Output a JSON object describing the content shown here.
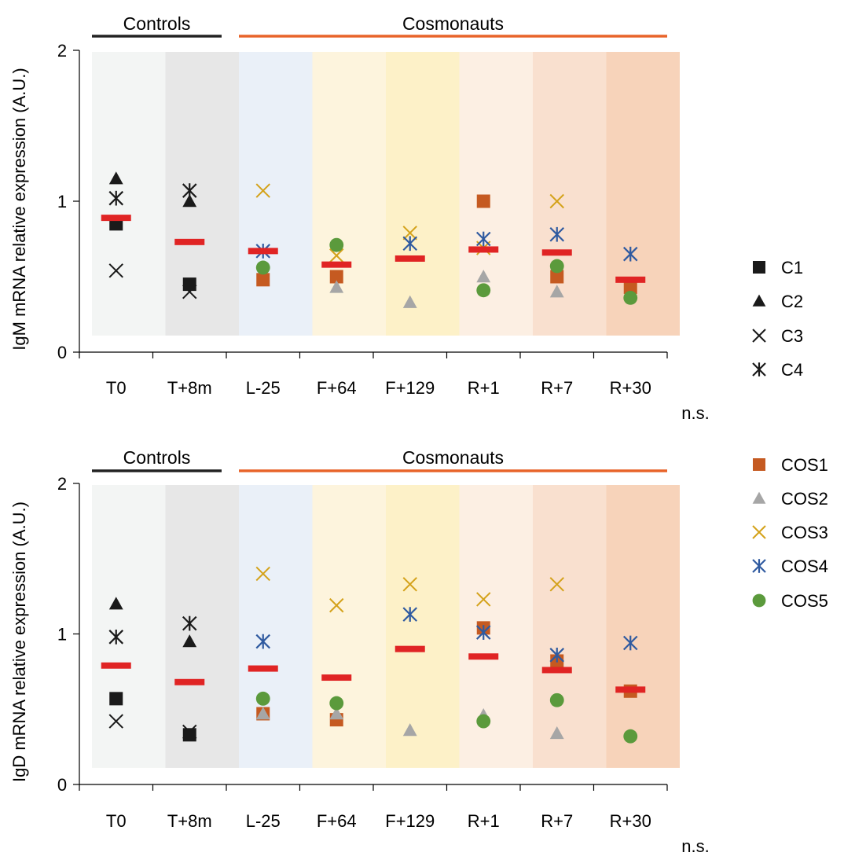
{
  "chart_data": [
    {
      "type": "scatter",
      "ylabel": "IgM mRNA relative expression (A.U.)",
      "ylim": [
        0,
        2
      ],
      "yticks": [
        "0",
        "1",
        "2"
      ],
      "categories": [
        "T0",
        "T+8m",
        "L-25",
        "F+64",
        "F+129",
        "R+1",
        "R+7",
        "R+30"
      ],
      "groups": [
        {
          "label": "Controls",
          "color": "#222222",
          "from": 0,
          "to": 1
        },
        {
          "label": "Cosmonauts",
          "color": "#e8642a",
          "from": 2,
          "to": 7
        }
      ],
      "significance": "n.s.",
      "means": [
        0.89,
        0.73,
        0.67,
        0.58,
        0.62,
        0.68,
        0.66,
        0.48
      ],
      "series": [
        {
          "name": "C1",
          "values": [
            0.85,
            0.45,
            null,
            null,
            null,
            null,
            null,
            null
          ]
        },
        {
          "name": "C2",
          "values": [
            1.15,
            1.0,
            null,
            null,
            null,
            null,
            null,
            null
          ]
        },
        {
          "name": "C3",
          "values": [
            0.54,
            0.4,
            null,
            null,
            null,
            null,
            null,
            null
          ]
        },
        {
          "name": "C4",
          "values": [
            1.02,
            1.07,
            null,
            null,
            null,
            null,
            null,
            null
          ]
        },
        {
          "name": "COS1",
          "values": [
            null,
            null,
            0.48,
            0.5,
            null,
            1.0,
            0.5,
            0.43
          ]
        },
        {
          "name": "COS2",
          "values": [
            null,
            null,
            null,
            0.43,
            0.33,
            0.5,
            0.4,
            null
          ]
        },
        {
          "name": "COS3",
          "values": [
            null,
            null,
            1.07,
            0.64,
            0.79,
            0.69,
            1.0,
            null
          ]
        },
        {
          "name": "COS4",
          "values": [
            null,
            null,
            0.67,
            null,
            0.72,
            0.75,
            0.78,
            0.65
          ]
        },
        {
          "name": "COS5",
          "values": [
            null,
            null,
            0.56,
            0.71,
            null,
            0.41,
            0.57,
            0.36
          ]
        }
      ]
    },
    {
      "type": "scatter",
      "ylabel": "IgD mRNA relative expression (A.U.)",
      "ylim": [
        0,
        2
      ],
      "yticks": [
        "0",
        "1",
        "2"
      ],
      "categories": [
        "T0",
        "T+8m",
        "L-25",
        "F+64",
        "F+129",
        "R+1",
        "R+7",
        "R+30"
      ],
      "groups": [
        {
          "label": "Controls",
          "color": "#222222",
          "from": 0,
          "to": 1
        },
        {
          "label": "Cosmonauts",
          "color": "#e8642a",
          "from": 2,
          "to": 7
        }
      ],
      "significance": "n.s.",
      "means": [
        0.79,
        0.68,
        0.77,
        0.71,
        0.9,
        0.85,
        0.76,
        0.63
      ],
      "series": [
        {
          "name": "C1",
          "values": [
            0.57,
            0.33,
            null,
            null,
            null,
            null,
            null,
            null
          ]
        },
        {
          "name": "C2",
          "values": [
            1.2,
            0.95,
            null,
            null,
            null,
            null,
            null,
            null
          ]
        },
        {
          "name": "C3",
          "values": [
            0.42,
            0.35,
            null,
            null,
            null,
            null,
            null,
            null
          ]
        },
        {
          "name": "C4",
          "values": [
            0.98,
            1.07,
            null,
            null,
            null,
            null,
            null,
            null
          ]
        },
        {
          "name": "COS1",
          "values": [
            null,
            null,
            0.47,
            0.43,
            null,
            1.04,
            0.82,
            0.62
          ]
        },
        {
          "name": "COS2",
          "values": [
            null,
            null,
            0.47,
            0.47,
            0.36,
            0.46,
            0.34,
            null
          ]
        },
        {
          "name": "COS3",
          "values": [
            null,
            null,
            1.4,
            1.19,
            1.33,
            1.23,
            1.33,
            null
          ]
        },
        {
          "name": "COS4",
          "values": [
            null,
            null,
            0.95,
            null,
            1.13,
            1.01,
            0.86,
            0.94
          ]
        },
        {
          "name": "COS5",
          "values": [
            null,
            null,
            0.57,
            0.54,
            null,
            0.42,
            0.56,
            0.32
          ]
        }
      ]
    }
  ],
  "legend": [
    {
      "name": "C1",
      "marker": "square",
      "color": "#1a1a1a"
    },
    {
      "name": "C2",
      "marker": "triangle",
      "color": "#1a1a1a"
    },
    {
      "name": "C3",
      "marker": "x",
      "color": "#1a1a1a"
    },
    {
      "name": "C4",
      "marker": "asterisk",
      "color": "#1a1a1a"
    },
    {
      "name": "COS1",
      "marker": "square",
      "color": "#c55a21"
    },
    {
      "name": "COS2",
      "marker": "triangle",
      "color": "#a6a6a6"
    },
    {
      "name": "COS3",
      "marker": "x",
      "color": "#d4a21a"
    },
    {
      "name": "COS4",
      "marker": "asterisk",
      "color": "#2f5aa0"
    },
    {
      "name": "COS5",
      "marker": "circle",
      "color": "#5b9a3c"
    }
  ],
  "colors": {
    "mean_bar": "#e02424",
    "column_backgrounds": [
      "#f3f5f4",
      "#e7e7e7",
      "#eaf0f8",
      "#fdf4dd",
      "#fdf1c8",
      "#fcefe3",
      "#f9e0cf",
      "#f7d3ba"
    ]
  }
}
